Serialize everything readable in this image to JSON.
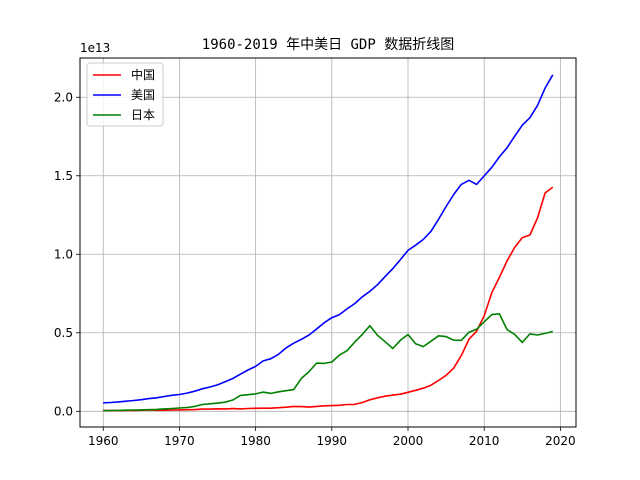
{
  "chart_data": {
    "type": "line",
    "title": "1960-2019 年中美日 GDP 数据折线图",
    "xlabel": "",
    "ylabel": "",
    "y_offset_label": "1e13",
    "grid": true,
    "legend_position": "top-left",
    "xlim": [
      1956.95,
      2022.05
    ],
    "ylim": [
      -0.1,
      2.25
    ],
    "x_ticks": [
      1960,
      1970,
      1980,
      1990,
      2000,
      2010,
      2020
    ],
    "y_ticks": [
      0.0,
      0.5,
      1.0,
      1.5,
      2.0
    ],
    "y_tick_labels": [
      "0.0",
      "0.5",
      "1.0",
      "1.5",
      "2.0"
    ],
    "x": [
      1960,
      1961,
      1962,
      1963,
      1964,
      1965,
      1966,
      1967,
      1968,
      1969,
      1970,
      1971,
      1972,
      1973,
      1974,
      1975,
      1976,
      1977,
      1978,
      1979,
      1980,
      1981,
      1982,
      1983,
      1984,
      1985,
      1986,
      1987,
      1988,
      1989,
      1990,
      1991,
      1992,
      1993,
      1994,
      1995,
      1996,
      1997,
      1998,
      1999,
      2000,
      2001,
      2002,
      2003,
      2004,
      2005,
      2006,
      2007,
      2008,
      2009,
      2010,
      2011,
      2012,
      2013,
      2014,
      2015,
      2016,
      2017,
      2018,
      2019
    ],
    "series": [
      {
        "name": "中国",
        "color": "#ff0000",
        "values": [
          0.006,
          0.005,
          0.005,
          0.005,
          0.006,
          0.007,
          0.008,
          0.007,
          0.007,
          0.008,
          0.009,
          0.01,
          0.011,
          0.014,
          0.014,
          0.016,
          0.015,
          0.017,
          0.015,
          0.018,
          0.019,
          0.02,
          0.02,
          0.023,
          0.026,
          0.031,
          0.03,
          0.027,
          0.031,
          0.035,
          0.036,
          0.038,
          0.043,
          0.044,
          0.056,
          0.073,
          0.086,
          0.096,
          0.103,
          0.109,
          0.121,
          0.134,
          0.147,
          0.166,
          0.196,
          0.229,
          0.275,
          0.355,
          0.459,
          0.51,
          0.609,
          0.755,
          0.853,
          0.957,
          1.044,
          1.106,
          1.123,
          1.231,
          1.39,
          1.428
        ]
      },
      {
        "name": "美国",
        "color": "#0000ff",
        "values": [
          0.054,
          0.056,
          0.06,
          0.064,
          0.069,
          0.074,
          0.081,
          0.086,
          0.094,
          0.102,
          0.107,
          0.116,
          0.128,
          0.143,
          0.155,
          0.168,
          0.188,
          0.209,
          0.236,
          0.263,
          0.286,
          0.321,
          0.335,
          0.363,
          0.404,
          0.434,
          0.458,
          0.486,
          0.524,
          0.564,
          0.596,
          0.616,
          0.652,
          0.686,
          0.729,
          0.764,
          0.806,
          0.858,
          0.909,
          0.966,
          1.025,
          1.058,
          1.094,
          1.146,
          1.222,
          1.304,
          1.381,
          1.445,
          1.471,
          1.445,
          1.499,
          1.554,
          1.62,
          1.678,
          1.752,
          1.822,
          1.87,
          1.948,
          2.058,
          2.143
        ]
      },
      {
        "name": "日本",
        "color": "#008000",
        "values": [
          0.004,
          0.005,
          0.006,
          0.007,
          0.008,
          0.009,
          0.01,
          0.012,
          0.015,
          0.017,
          0.021,
          0.024,
          0.031,
          0.043,
          0.048,
          0.052,
          0.058,
          0.072,
          0.101,
          0.106,
          0.111,
          0.122,
          0.114,
          0.124,
          0.131,
          0.138,
          0.209,
          0.253,
          0.307,
          0.305,
          0.314,
          0.358,
          0.386,
          0.441,
          0.49,
          0.545,
          0.484,
          0.443,
          0.4,
          0.452,
          0.489,
          0.43,
          0.412,
          0.446,
          0.481,
          0.476,
          0.453,
          0.452,
          0.504,
          0.523,
          0.57,
          0.616,
          0.621,
          0.521,
          0.49,
          0.439,
          0.493,
          0.486,
          0.496,
          0.508
        ]
      }
    ]
  }
}
